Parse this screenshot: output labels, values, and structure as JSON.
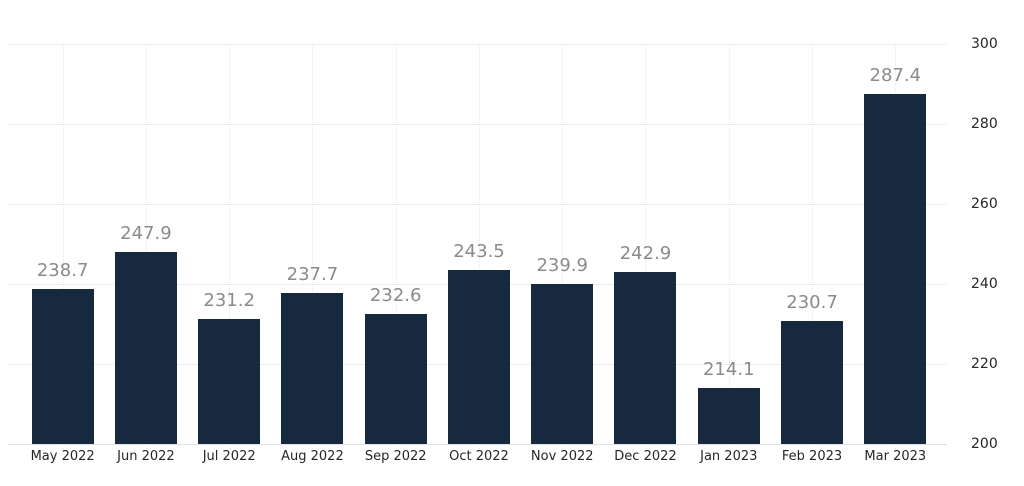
{
  "chart_data": {
    "type": "bar",
    "categories": [
      "May 2022",
      "Jun 2022",
      "Jul 2022",
      "Aug 2022",
      "Sep 2022",
      "Oct 2022",
      "Nov 2022",
      "Dec 2022",
      "Jan 2023",
      "Feb 2023",
      "Mar 2023"
    ],
    "values": [
      238.7,
      247.9,
      231.2,
      237.7,
      232.6,
      243.5,
      239.9,
      242.9,
      214.1,
      230.7,
      287.4
    ],
    "value_labels": [
      "238.7",
      "247.9",
      "231.2",
      "237.7",
      "232.6",
      "243.5",
      "239.9",
      "242.9",
      "214.1",
      "230.7",
      "287.4"
    ],
    "title": "",
    "xlabel": "",
    "ylabel": "",
    "ylim": [
      200,
      300
    ],
    "yticks": [
      200,
      220,
      240,
      260,
      280,
      300
    ],
    "grid": true,
    "legend_position": "none",
    "yaxis_side": "right"
  },
  "colors": {
    "bar_fill": "#16293e",
    "value_label": "#8b8b8b",
    "axis_label": "#262626",
    "gridline": "#ececec",
    "axis_line": "#e0e0e0",
    "vertical_gridline": "#e7e7e7",
    "background": "#ffffff"
  }
}
